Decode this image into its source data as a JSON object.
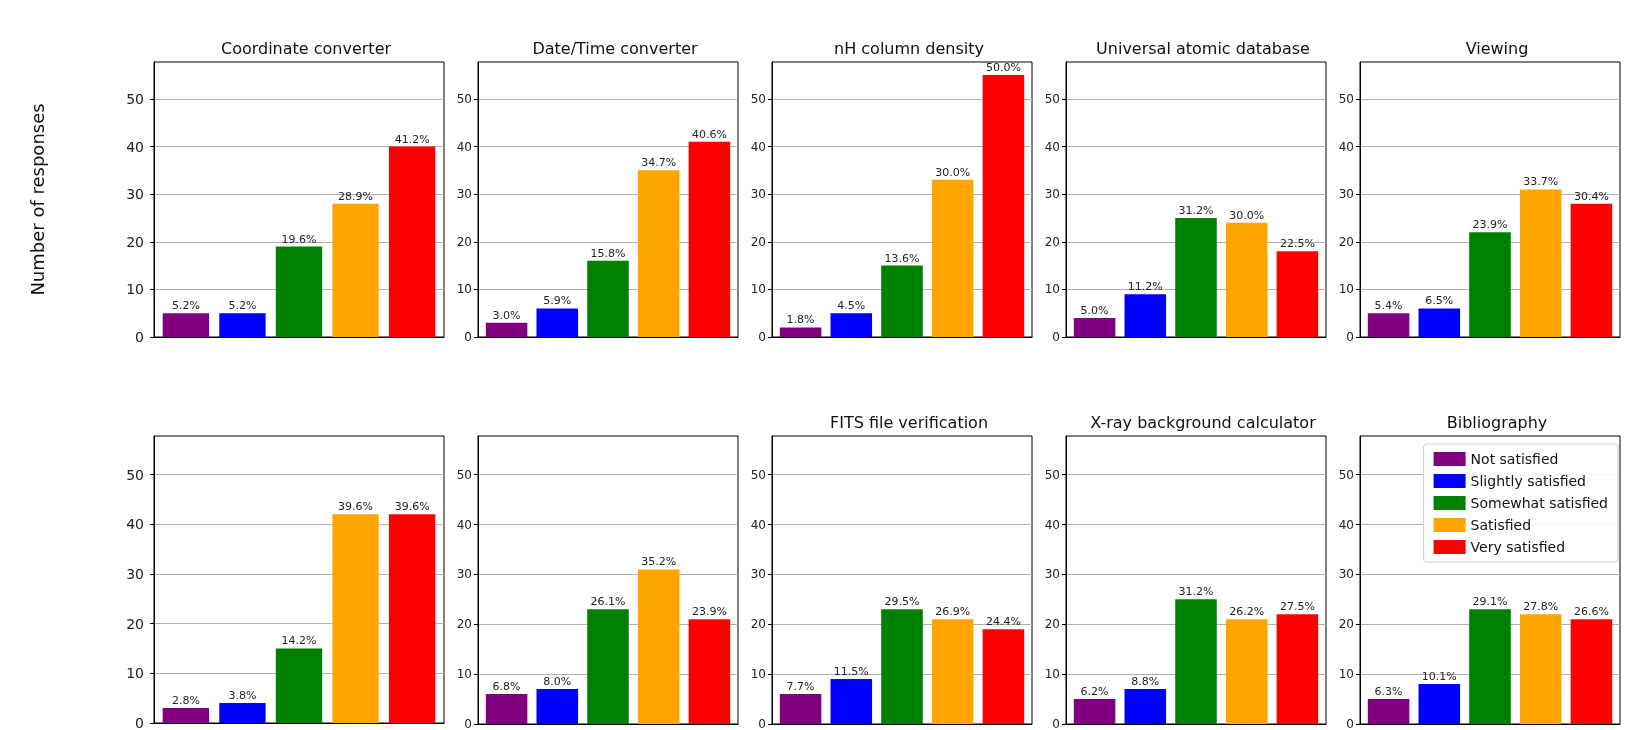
{
  "chart_data": [
    {
      "type": "bar",
      "title": "Coordinate converter",
      "ylabel": "Number of responses",
      "categories": [
        null
      ],
      "ylim": [
        0,
        57.75
      ],
      "yticks": [
        0,
        10,
        20,
        30,
        40,
        50
      ],
      "grid": "y",
      "tick_labels": "y",
      "annotations": [
        "5.2%",
        "5.2%",
        "19.6%",
        "28.9%",
        "41.2%"
      ],
      "series": [
        {
          "color": "#800080",
          "values": [
            5
          ]
        },
        {
          "color": "#0000ff",
          "values": [
            5
          ]
        },
        {
          "color": "#008000",
          "values": [
            19
          ]
        },
        {
          "color": "#ffa500",
          "values": [
            28
          ]
        },
        {
          "color": "#ff0000",
          "values": [
            40
          ]
        }
      ]
    },
    {
      "type": "bar",
      "title": "Date/Time converter",
      "categories": [
        null
      ],
      "ylim": [
        0,
        57.75
      ],
      "yticks": [
        0,
        10,
        20,
        30,
        40,
        50
      ],
      "grid": "y",
      "tick_labels": "y",
      "annotations": [
        "3.0%",
        "5.9%",
        "15.8%",
        "34.7%",
        "40.6%"
      ],
      "series": [
        {
          "color": "#800080",
          "values": [
            3
          ]
        },
        {
          "color": "#0000ff",
          "values": [
            6
          ]
        },
        {
          "color": "#008000",
          "values": [
            16
          ]
        },
        {
          "color": "#ffa500",
          "values": [
            35
          ]
        },
        {
          "color": "#ff0000",
          "values": [
            41
          ]
        }
      ]
    },
    {
      "type": "bar",
      "title": "nH column density",
      "categories": [
        null
      ],
      "ylim": [
        0,
        57.75
      ],
      "yticks": [
        0,
        10,
        20,
        30,
        40,
        50
      ],
      "grid": "y",
      "tick_labels": "y",
      "annotations": [
        "1.8%",
        "4.5%",
        "13.6%",
        "30.0%",
        "50.0%"
      ],
      "series": [
        {
          "color": "#800080",
          "values": [
            2
          ]
        },
        {
          "color": "#0000ff",
          "values": [
            5
          ]
        },
        {
          "color": "#008000",
          "values": [
            15
          ]
        },
        {
          "color": "#ffa500",
          "values": [
            33
          ]
        },
        {
          "color": "#ff0000",
          "values": [
            55
          ]
        }
      ]
    },
    {
      "type": "bar",
      "title": "Universal atomic database",
      "categories": [
        null
      ],
      "ylim": [
        0,
        57.75
      ],
      "yticks": [
        0,
        10,
        20,
        30,
        40,
        50
      ],
      "grid": "y",
      "tick_labels": "y",
      "annotations": [
        "5.0%",
        "11.2%",
        "31.2%",
        "30.0%",
        "22.5%"
      ],
      "series": [
        {
          "color": "#800080",
          "values": [
            4
          ]
        },
        {
          "color": "#0000ff",
          "values": [
            9
          ]
        },
        {
          "color": "#008000",
          "values": [
            25
          ]
        },
        {
          "color": "#ffa500",
          "values": [
            24
          ]
        },
        {
          "color": "#ff0000",
          "values": [
            18
          ]
        }
      ]
    },
    {
      "type": "bar",
      "title": "Viewing",
      "categories": [
        null
      ],
      "ylim": [
        0,
        57.75
      ],
      "yticks": [
        0,
        10,
        20,
        30,
        40,
        50
      ],
      "grid": "y",
      "tick_labels": "y",
      "annotations": [
        "5.4%",
        "6.5%",
        "23.9%",
        "33.7%",
        "30.4%"
      ],
      "series": [
        {
          "color": "#800080",
          "values": [
            5
          ]
        },
        {
          "color": "#0000ff",
          "values": [
            6
          ]
        },
        {
          "color": "#008000",
          "values": [
            22
          ]
        },
        {
          "color": "#ffa500",
          "values": [
            31
          ]
        },
        {
          "color": "#ff0000",
          "values": [
            28
          ]
        }
      ]
    },
    {
      "type": "bar",
      "categories": [
        null
      ],
      "ylim": [
        0,
        57.75
      ],
      "yticks": [
        0,
        10,
        20,
        30,
        40,
        50
      ],
      "grid": "y",
      "tick_labels": "y",
      "annotations": [
        "2.8%",
        "3.8%",
        "14.2%",
        "39.6%",
        "39.6%"
      ],
      "series": [
        {
          "color": "#800080",
          "values": [
            3
          ]
        },
        {
          "color": "#0000ff",
          "values": [
            4
          ]
        },
        {
          "color": "#008000",
          "values": [
            15
          ]
        },
        {
          "color": "#ffa500",
          "values": [
            42
          ]
        },
        {
          "color": "#ff0000",
          "values": [
            42
          ]
        }
      ]
    },
    {
      "type": "bar",
      "categories": [
        null
      ],
      "ylim": [
        0,
        57.75
      ],
      "yticks": [
        0,
        10,
        20,
        30,
        40,
        50
      ],
      "grid": "y",
      "tick_labels": "y",
      "annotations": [
        "6.8%",
        "8.0%",
        "26.1%",
        "35.2%",
        "23.9%"
      ],
      "series": [
        {
          "color": "#800080",
          "values": [
            6
          ]
        },
        {
          "color": "#0000ff",
          "values": [
            7
          ]
        },
        {
          "color": "#008000",
          "values": [
            23
          ]
        },
        {
          "color": "#ffa500",
          "values": [
            31
          ]
        },
        {
          "color": "#ff0000",
          "values": [
            21
          ]
        }
      ]
    },
    {
      "type": "bar",
      "title": "FITS file verification",
      "categories": [
        null
      ],
      "ylim": [
        0,
        57.75
      ],
      "yticks": [
        0,
        10,
        20,
        30,
        40,
        50
      ],
      "grid": "y",
      "tick_labels": "y",
      "annotations": [
        "7.7%",
        "11.5%",
        "29.5%",
        "26.9%",
        "24.4%"
      ],
      "series": [
        {
          "color": "#800080",
          "values": [
            6
          ]
        },
        {
          "color": "#0000ff",
          "values": [
            9
          ]
        },
        {
          "color": "#008000",
          "values": [
            23
          ]
        },
        {
          "color": "#ffa500",
          "values": [
            21
          ]
        },
        {
          "color": "#ff0000",
          "values": [
            19
          ]
        }
      ]
    },
    {
      "type": "bar",
      "title": "X-ray background calculator",
      "categories": [
        null
      ],
      "ylim": [
        0,
        57.75
      ],
      "yticks": [
        0,
        10,
        20,
        30,
        40,
        50
      ],
      "grid": "y",
      "tick_labels": "y",
      "annotations": [
        "6.2%",
        "8.8%",
        "31.2%",
        "26.2%",
        "27.5%"
      ],
      "series": [
        {
          "color": "#800080",
          "values": [
            5
          ]
        },
        {
          "color": "#0000ff",
          "values": [
            7
          ]
        },
        {
          "color": "#008000",
          "values": [
            25
          ]
        },
        {
          "color": "#ffa500",
          "values": [
            21
          ]
        },
        {
          "color": "#ff0000",
          "values": [
            22
          ]
        }
      ]
    },
    {
      "type": "bar",
      "title": "Bibliography",
      "categories": [
        null
      ],
      "ylim": [
        0,
        57.75
      ],
      "yticks": [
        0,
        10,
        20,
        30,
        40,
        50
      ],
      "grid": "y",
      "tick_labels": "y",
      "legend": "top right",
      "annotations": [
        "6.3%",
        "10.1%",
        "29.1%",
        "27.8%",
        "26.6%"
      ],
      "series": [
        {
          "name": "Not satisfied",
          "color": "#800080",
          "values": [
            5
          ]
        },
        {
          "name": "Slightly satisfied",
          "color": "#0000ff",
          "values": [
            8
          ]
        },
        {
          "name": "Somewhat satisfied",
          "color": "#008000",
          "values": [
            23
          ]
        },
        {
          "name": "Satisfied",
          "color": "#ffa500",
          "values": [
            22
          ]
        },
        {
          "name": "Very satisfied",
          "color": "#ff0000",
          "values": [
            21
          ]
        }
      ]
    }
  ]
}
